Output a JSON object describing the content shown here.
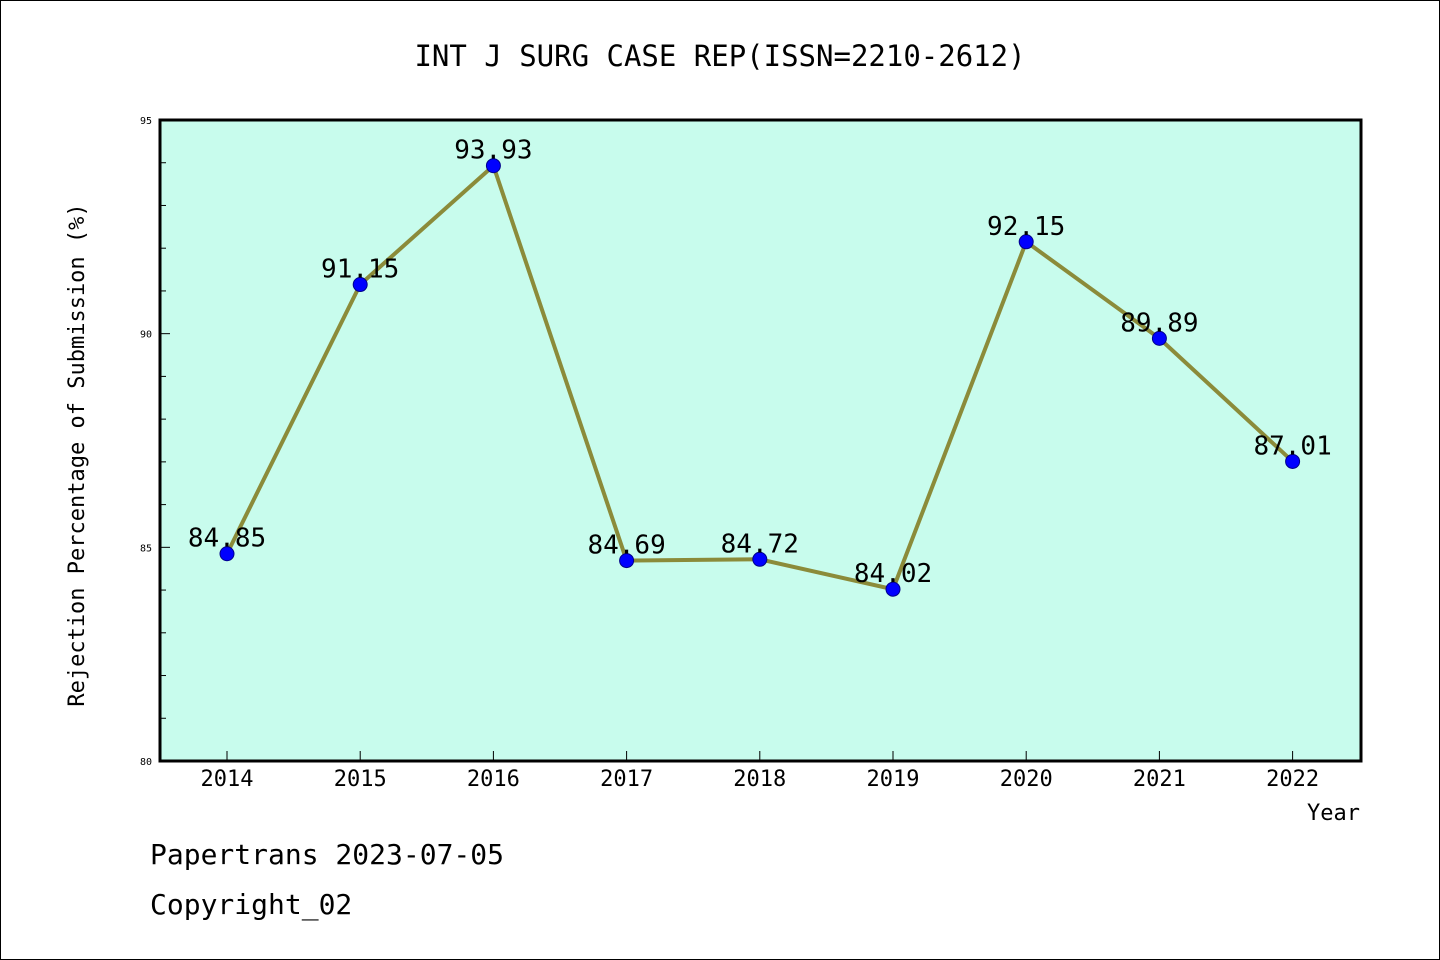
{
  "chart_data": {
    "type": "line",
    "title": "INT J SURG CASE REP(ISSN=2210-2612)",
    "xlabel": "Year",
    "ylabel": "Rejection Percentage of Submission (%)",
    "categories": [
      "2014",
      "2015",
      "2016",
      "2017",
      "2018",
      "2019",
      "2020",
      "2021",
      "2022"
    ],
    "values": [
      84.85,
      91.15,
      93.93,
      84.69,
      84.72,
      84.02,
      92.15,
      89.89,
      87.01
    ],
    "data_labels": [
      "84.85",
      "91.15",
      "93.93",
      "84.69",
      "84.72",
      "84.02",
      "92.15",
      "89.89",
      "87.01"
    ],
    "ylim": [
      80,
      95
    ],
    "y_ticks": [
      "80",
      "85",
      "90",
      "95"
    ],
    "grid": false,
    "legend": "none"
  },
  "colors": {
    "plot_background": "#c8fced",
    "line": "#8b8b3a",
    "marker": "#0000ff"
  },
  "footer": {
    "line1": "Papertrans 2023-07-05",
    "line2": "Copyright_02"
  }
}
